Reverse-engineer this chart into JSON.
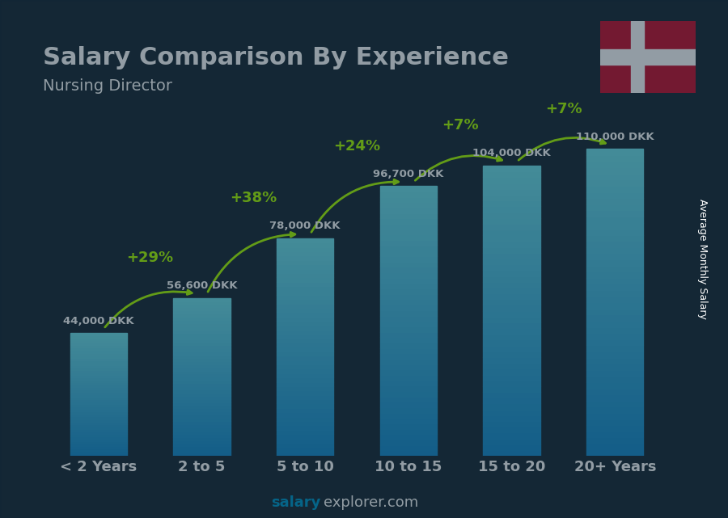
{
  "title": "Salary Comparison By Experience",
  "subtitle": "Nursing Director",
  "ylabel": "Average Monthly Salary",
  "watermark": "salaryexplorer.com",
  "categories": [
    "< 2 Years",
    "2 to 5",
    "5 to 10",
    "10 to 15",
    "15 to 20",
    "20+ Years"
  ],
  "values": [
    44000,
    56600,
    78000,
    96700,
    104000,
    110000
  ],
  "value_labels": [
    "44,000 DKK",
    "56,600 DKK",
    "78,000 DKK",
    "96,700 DKK",
    "104,000 DKK",
    "110,000 DKK"
  ],
  "pct_changes": [
    "+29%",
    "+38%",
    "+24%",
    "+7%",
    "+7%"
  ],
  "bar_color_top": "#4dd9f0",
  "bar_color_bottom": "#0088cc",
  "bar_color_mid": "#29b8e0",
  "bg_color": "#1a3a4a",
  "title_color": "#ffffff",
  "subtitle_color": "#ffffff",
  "label_color": "#ffffff",
  "pct_color": "#aaff00",
  "arrow_color": "#aaff00",
  "tick_color": "#ffffff",
  "watermark_bold": "salary",
  "watermark_normal": "explorer.com",
  "flag_colors": [
    "#c8102e",
    "#ffffff"
  ],
  "ylim": [
    0,
    130000
  ]
}
